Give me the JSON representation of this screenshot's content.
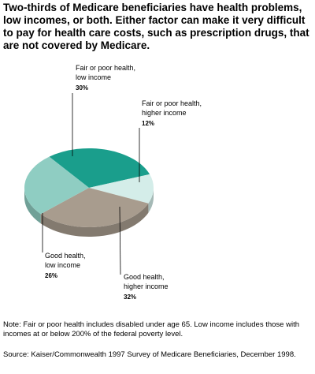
{
  "title": "Two-thirds of Medicare beneficiaries have health problems, low incomes, or both. Either factor can make it very difficult to pay for health care costs, such as prescription drugs, that are not covered by Medicare.",
  "note": "Note: Fair or poor health includes disabled under age 65. Low income includes those with incomes at or below 200% of the federal poverty level.",
  "source": "Source: Kaiser/Commonwealth 1997 Survey of Medicare Beneficiaries, December 1998.",
  "chart_data": {
    "type": "pie",
    "slices": [
      {
        "label_lines": [
          "Fair or poor health,",
          "low income"
        ],
        "value_label": "30%",
        "value": 30,
        "color": "#1a9e8c"
      },
      {
        "label_lines": [
          "Fair or poor health,",
          "higher income"
        ],
        "value_label": "12%",
        "value": 12,
        "color": "#d4ede9"
      },
      {
        "label_lines": [
          "Good health,",
          "higher income"
        ],
        "value_label": "32%",
        "value": 32,
        "color": "#a89c8e"
      },
      {
        "label_lines": [
          "Good health,",
          "low income"
        ],
        "value_label": "26%",
        "value": 26,
        "color": "#8fcdc2"
      }
    ]
  }
}
